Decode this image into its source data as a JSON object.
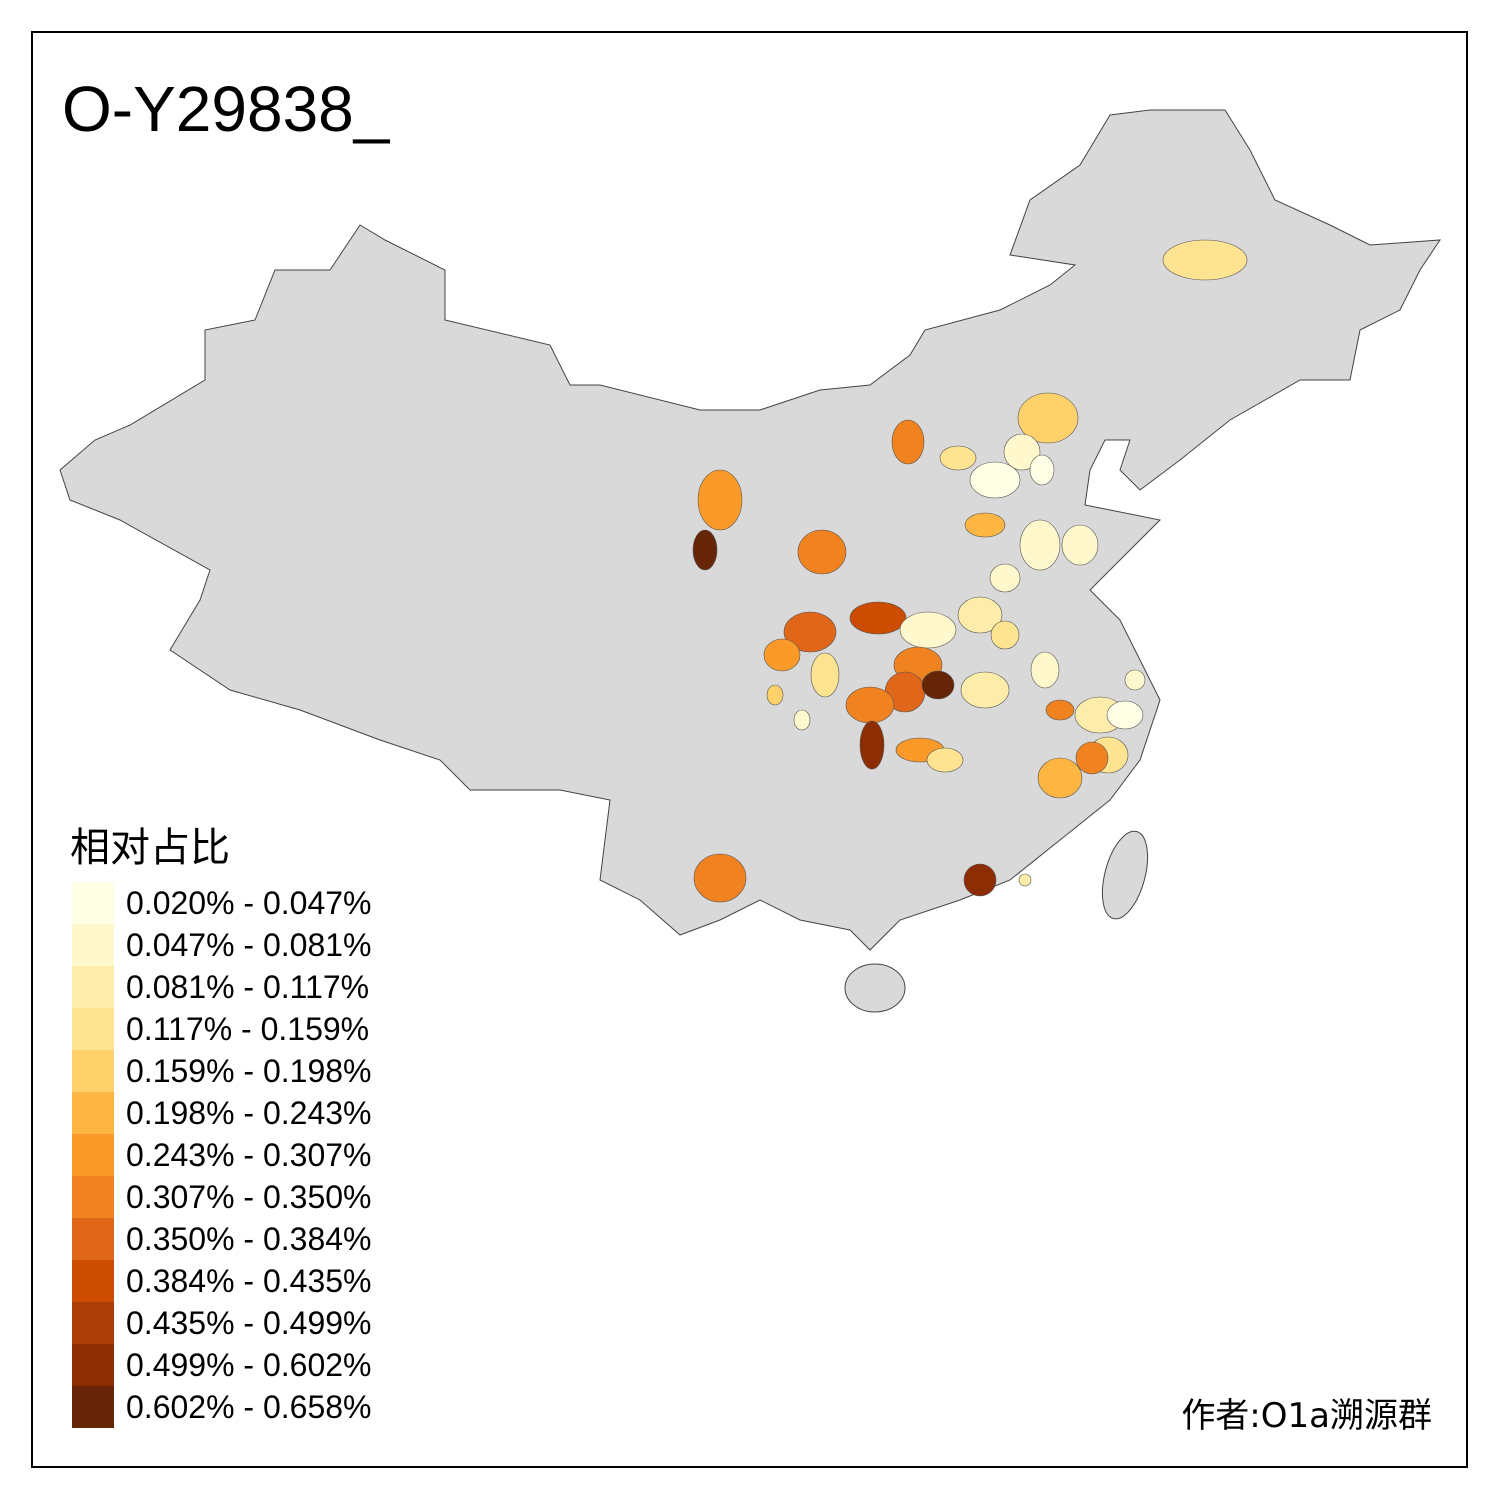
{
  "title": "O-Y29838_",
  "legend": {
    "title": "相对占比",
    "items": [
      {
        "label": "0.020% - 0.047%",
        "color": "#FFFFE5"
      },
      {
        "label": "0.047% - 0.081%",
        "color": "#FFF8CC"
      },
      {
        "label": "0.081% - 0.117%",
        "color": "#FEEDAA"
      },
      {
        "label": "0.117% - 0.159%",
        "color": "#FEE391"
      },
      {
        "label": "0.159% - 0.198%",
        "color": "#FED16A"
      },
      {
        "label": "0.198% - 0.243%",
        "color": "#FEB642"
      },
      {
        "label": "0.243% - 0.307%",
        "color": "#FB9A29"
      },
      {
        "label": "0.307% - 0.350%",
        "color": "#F0821F"
      },
      {
        "label": "0.350% - 0.384%",
        "color": "#E0661A"
      },
      {
        "label": "0.384% - 0.435%",
        "color": "#CC4C02"
      },
      {
        "label": "0.435% - 0.499%",
        "color": "#AD3D06"
      },
      {
        "label": "0.499% - 0.602%",
        "color": "#8C2D04"
      },
      {
        "label": "0.602% - 0.658%",
        "color": "#662506"
      }
    ]
  },
  "base_color": "#D9D9D9",
  "author": "作者:O1a溯源群"
}
